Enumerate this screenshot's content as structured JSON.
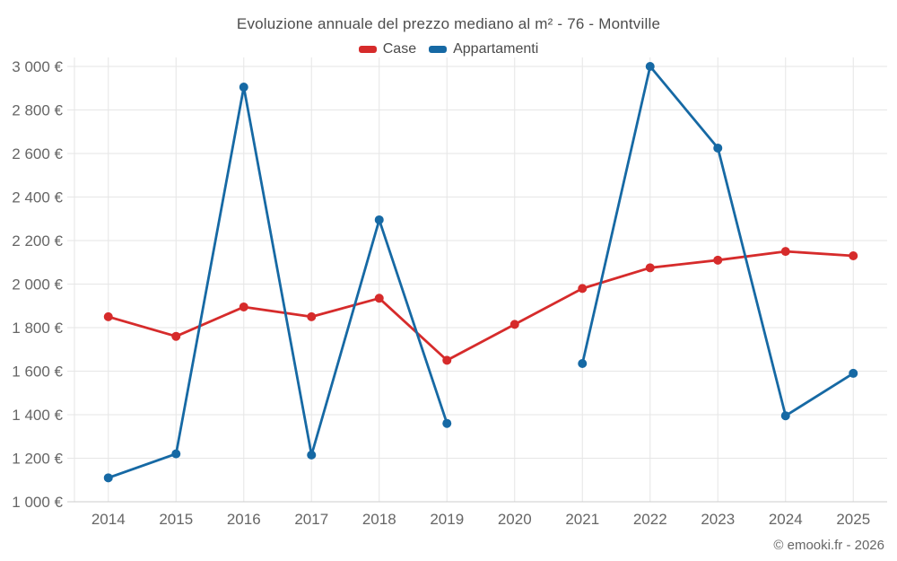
{
  "chart": {
    "title": "Evoluzione annuale del prezzo mediano al m² - 76 - Montville"
  },
  "chart_data": {
    "type": "line",
    "x": [
      "2014",
      "2015",
      "2016",
      "2017",
      "2018",
      "2019",
      "2020",
      "2021",
      "2022",
      "2023",
      "2024",
      "2025"
    ],
    "series": [
      {
        "name": "Case",
        "color": "#d62b2b",
        "values": [
          1850,
          1760,
          1895,
          1850,
          1935,
          1650,
          1815,
          1980,
          2075,
          2110,
          2150,
          2130
        ]
      },
      {
        "name": "Appartamenti",
        "color": "#1669a4",
        "values": [
          1110,
          1220,
          2905,
          1215,
          2295,
          1360,
          null,
          1635,
          3000,
          2625,
          1395,
          1590
        ]
      }
    ],
    "ylim": [
      1000,
      3000
    ],
    "ytick_step": 200,
    "ytick_suffix": " €",
    "grid": true,
    "legend_position": "top"
  },
  "footer": {
    "attribution": "© emooki.fr - 2026"
  }
}
